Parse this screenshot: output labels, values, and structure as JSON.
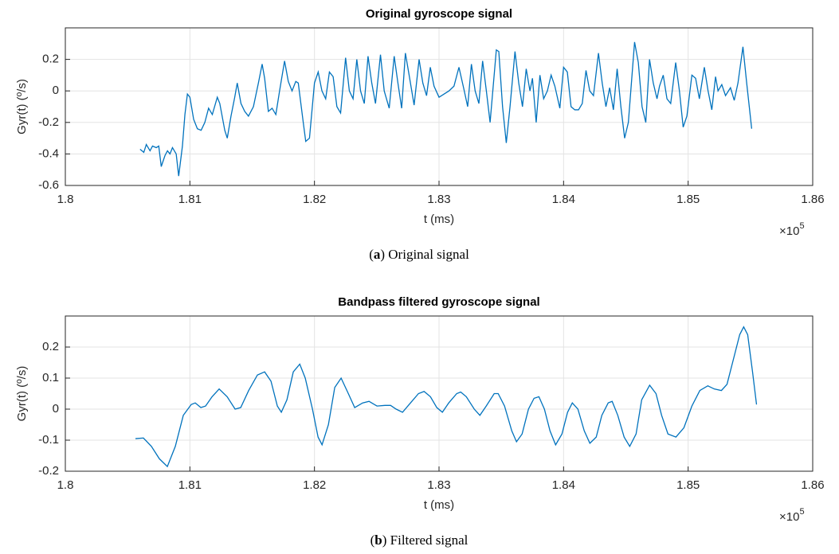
{
  "chart_data": [
    {
      "type": "line",
      "title": "Original gyroscope signal",
      "xlabel": "t (ms)",
      "ylabel": "Gyr(t) (º/s)",
      "x_scale": {
        "base": "×10",
        "exponent": "5"
      },
      "caption": {
        "label": "a",
        "text": "Original signal"
      },
      "color": "#0072bd",
      "grid": true,
      "xlim": [
        1.8,
        1.86
      ],
      "xticks": [
        1.8,
        1.81,
        1.82,
        1.83,
        1.84,
        1.85,
        1.86
      ],
      "ylim": [
        -0.6,
        0.4
      ],
      "yticks": [
        -0.6,
        -0.4,
        -0.2,
        0,
        0.2
      ],
      "x": [
        1.806,
        1.8063,
        1.8065,
        1.8068,
        1.807,
        1.8073,
        1.8075,
        1.8077,
        1.808,
        1.8082,
        1.8084,
        1.8086,
        1.8089,
        1.8091,
        1.8094,
        1.8096,
        1.8098,
        1.81,
        1.8103,
        1.8106,
        1.8109,
        1.8112,
        1.8115,
        1.8118,
        1.8122,
        1.8124,
        1.8128,
        1.813,
        1.8133,
        1.8136,
        1.8138,
        1.8141,
        1.8144,
        1.8147,
        1.8151,
        1.8155,
        1.8158,
        1.816,
        1.8163,
        1.8166,
        1.8169,
        1.8172,
        1.8176,
        1.8179,
        1.8182,
        1.8185,
        1.8187,
        1.8191,
        1.8193,
        1.8196,
        1.82,
        1.8203,
        1.8206,
        1.8209,
        1.8212,
        1.8215,
        1.8218,
        1.8221,
        1.8225,
        1.8228,
        1.8231,
        1.8234,
        1.8237,
        1.824,
        1.8243,
        1.8246,
        1.8249,
        1.8253,
        1.8256,
        1.826,
        1.8264,
        1.8267,
        1.827,
        1.8273,
        1.8276,
        1.828,
        1.8284,
        1.8287,
        1.829,
        1.8293,
        1.8296,
        1.83,
        1.8304,
        1.8308,
        1.8312,
        1.8316,
        1.832,
        1.8323,
        1.8326,
        1.8329,
        1.8332,
        1.8335,
        1.8338,
        1.8341,
        1.8346,
        1.8348,
        1.8351,
        1.8354,
        1.8357,
        1.8361,
        1.8364,
        1.8367,
        1.837,
        1.8373,
        1.8375,
        1.8378,
        1.8381,
        1.8384,
        1.8387,
        1.839,
        1.8393,
        1.8397,
        1.84,
        1.8403,
        1.8406,
        1.8409,
        1.8412,
        1.8415,
        1.8418,
        1.8421,
        1.8424,
        1.8428,
        1.8431,
        1.8434,
        1.8437,
        1.844,
        1.8443,
        1.8446,
        1.8449,
        1.8452,
        1.8457,
        1.846,
        1.8463,
        1.8466,
        1.8469,
        1.8472,
        1.8475,
        1.8477,
        1.848,
        1.8483,
        1.8486,
        1.849,
        1.8493,
        1.8496,
        1.8499,
        1.8503,
        1.8506,
        1.8509,
        1.8513,
        1.8516,
        1.8519,
        1.8522,
        1.8524,
        1.8527,
        1.853,
        1.8534,
        1.8537,
        1.854,
        1.8544,
        1.8547,
        1.8551
      ],
      "values": [
        -0.37,
        -0.39,
        -0.34,
        -0.38,
        -0.35,
        -0.36,
        -0.35,
        -0.48,
        -0.41,
        -0.38,
        -0.4,
        -0.36,
        -0.4,
        -0.54,
        -0.35,
        -0.15,
        -0.02,
        -0.04,
        -0.18,
        -0.24,
        -0.25,
        -0.2,
        -0.11,
        -0.15,
        -0.04,
        -0.08,
        -0.25,
        -0.3,
        -0.16,
        -0.04,
        0.05,
        -0.08,
        -0.13,
        -0.16,
        -0.1,
        0.05,
        0.17,
        0.08,
        -0.13,
        -0.11,
        -0.15,
        0.0,
        0.19,
        0.06,
        0.0,
        0.06,
        0.05,
        -0.2,
        -0.32,
        -0.3,
        0.05,
        0.12,
        0.0,
        -0.05,
        0.12,
        0.09,
        -0.1,
        -0.14,
        0.21,
        0.0,
        -0.05,
        0.2,
        0.0,
        -0.08,
        0.22,
        0.05,
        -0.08,
        0.23,
        0.0,
        -0.11,
        0.22,
        0.05,
        -0.11,
        0.24,
        0.1,
        -0.09,
        0.2,
        0.05,
        -0.03,
        0.15,
        0.03,
        -0.04,
        -0.02,
        0.0,
        0.03,
        0.15,
        0.01,
        -0.1,
        0.17,
        0.0,
        -0.08,
        0.19,
        0.0,
        -0.2,
        0.26,
        0.25,
        -0.1,
        -0.33,
        -0.1,
        0.25,
        0.05,
        -0.1,
        0.14,
        0.0,
        0.08,
        -0.2,
        0.1,
        -0.05,
        0.0,
        0.1,
        0.03,
        -0.11,
        0.15,
        0.12,
        -0.1,
        -0.12,
        -0.12,
        -0.08,
        0.13,
        0.0,
        -0.03,
        0.24,
        0.05,
        -0.1,
        0.02,
        -0.12,
        0.14,
        -0.1,
        -0.3,
        -0.2,
        0.31,
        0.18,
        -0.1,
        -0.2,
        0.2,
        0.05,
        -0.05,
        0.03,
        0.1,
        -0.05,
        -0.08,
        0.18,
        0.0,
        -0.23,
        -0.16,
        0.1,
        0.08,
        -0.05,
        0.15,
        0.0,
        -0.12,
        0.09,
        0.0,
        0.04,
        -0.03,
        0.02,
        -0.06,
        0.05,
        0.28,
        0.05,
        -0.24
      ]
    },
    {
      "type": "line",
      "title": "Bandpass filtered gyroscope signal",
      "xlabel": "t (ms)",
      "ylabel": "Gyr(t) (º/s)",
      "x_scale": {
        "base": "×10",
        "exponent": "5"
      },
      "caption": {
        "label": "b",
        "text": "Filtered signal"
      },
      "color": "#0072bd",
      "grid": true,
      "xlim": [
        1.8,
        1.86
      ],
      "xticks": [
        1.8,
        1.81,
        1.82,
        1.83,
        1.84,
        1.85,
        1.86
      ],
      "ylim": [
        -0.2,
        0.3
      ],
      "yticks": [
        -0.2,
        -0.1,
        0,
        0.1,
        0.2
      ],
      "x": [
        1.80563,
        1.80627,
        1.80691,
        1.80755,
        1.80819,
        1.80883,
        1.80947,
        1.81011,
        1.81043,
        1.81088,
        1.81126,
        1.81178,
        1.81235,
        1.81299,
        1.81363,
        1.81408,
        1.81472,
        1.81542,
        1.816,
        1.81651,
        1.81702,
        1.81734,
        1.81779,
        1.8183,
        1.81882,
        1.81926,
        1.81984,
        1.82029,
        1.82061,
        1.82112,
        1.82163,
        1.82214,
        1.82272,
        1.82323,
        1.82387,
        1.82438,
        1.82502,
        1.82566,
        1.82611,
        1.82656,
        1.82707,
        1.82771,
        1.82835,
        1.8288,
        1.82931,
        1.82982,
        1.83027,
        1.83078,
        1.83142,
        1.83174,
        1.83219,
        1.83283,
        1.83328,
        1.83379,
        1.83443,
        1.83475,
        1.83526,
        1.83584,
        1.83622,
        1.83667,
        1.83718,
        1.83763,
        1.83802,
        1.83846,
        1.83891,
        1.83936,
        1.83987,
        1.84032,
        1.8407,
        1.84115,
        1.84166,
        1.84211,
        1.84262,
        1.84307,
        1.84358,
        1.8439,
        1.84435,
        1.84486,
        1.84531,
        1.84582,
        1.84627,
        1.84691,
        1.84742,
        1.84787,
        1.84838,
        1.84902,
        1.84966,
        1.8503,
        1.85094,
        1.85158,
        1.8521,
        1.85267,
        1.85312,
        1.85363,
        1.85414,
        1.85446,
        1.85478,
        1.85517,
        1.85549
      ],
      "values": [
        -0.095,
        -0.093,
        -0.12,
        -0.16,
        -0.185,
        -0.12,
        -0.02,
        0.015,
        0.02,
        0.005,
        0.01,
        0.04,
        0.065,
        0.04,
        0.0,
        0.005,
        0.06,
        0.11,
        0.12,
        0.09,
        0.01,
        -0.01,
        0.03,
        0.12,
        0.145,
        0.1,
        0.0,
        -0.09,
        -0.115,
        -0.05,
        0.07,
        0.1,
        0.05,
        0.005,
        0.02,
        0.025,
        0.01,
        0.012,
        0.012,
        0.0,
        -0.01,
        0.02,
        0.05,
        0.057,
        0.04,
        0.005,
        -0.01,
        0.02,
        0.05,
        0.055,
        0.04,
        0.0,
        -0.02,
        0.01,
        0.05,
        0.05,
        0.01,
        -0.07,
        -0.105,
        -0.08,
        0.0,
        0.035,
        0.04,
        0.0,
        -0.07,
        -0.115,
        -0.08,
        -0.01,
        0.02,
        0.0,
        -0.07,
        -0.11,
        -0.09,
        -0.02,
        0.02,
        0.025,
        -0.02,
        -0.09,
        -0.12,
        -0.08,
        0.03,
        0.077,
        0.05,
        -0.02,
        -0.08,
        -0.09,
        -0.06,
        0.01,
        0.06,
        0.075,
        0.065,
        0.06,
        0.08,
        0.16,
        0.24,
        0.265,
        0.24,
        0.12,
        0.015
      ]
    }
  ]
}
